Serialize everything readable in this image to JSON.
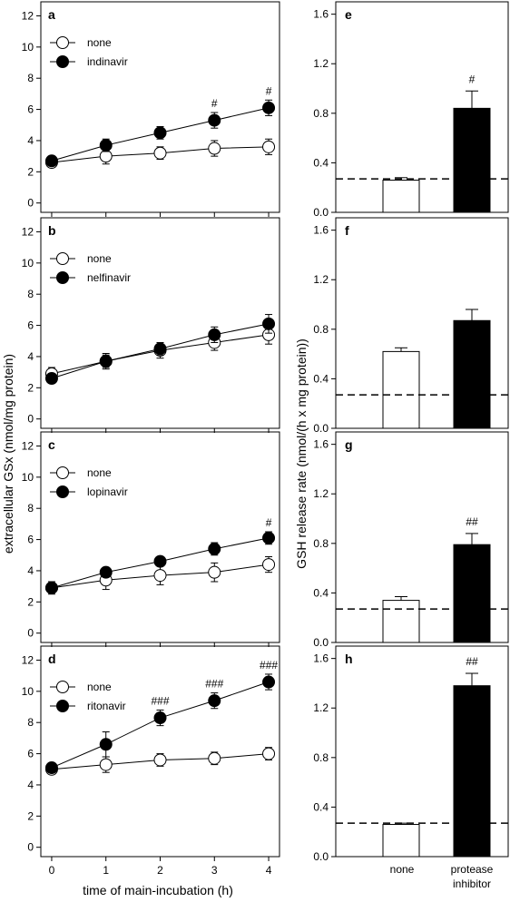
{
  "labels": {
    "left_ylabel": "extracellular GSx (nmol/mg protein)",
    "left_xlabel": "time of main-incubation (h)",
    "right_ylabel": "GSH release rate (nmol/(h x mg protein))",
    "right_cat_none": "none",
    "right_cat_pi_line1": "protease",
    "right_cat_pi_line2": "inhibitor"
  },
  "chart_data": [
    {
      "type": "line",
      "panel": "a",
      "x": [
        0,
        1,
        2,
        3,
        4
      ],
      "xlim": [
        -0.2,
        4.2
      ],
      "ylim": [
        -0.6,
        12.9
      ],
      "xticks": [
        0,
        1,
        2,
        3,
        4
      ],
      "yticks": [
        0,
        2,
        4,
        6,
        8,
        10,
        12
      ],
      "show_xticklabels": false,
      "series": [
        {
          "name": "none",
          "marker": "open",
          "values": [
            2.6,
            3.0,
            3.2,
            3.5,
            3.6
          ],
          "errors": [
            0.3,
            0.5,
            0.4,
            0.5,
            0.5
          ]
        },
        {
          "name": "indinavir",
          "marker": "filled",
          "values": [
            2.7,
            3.7,
            4.5,
            5.3,
            6.1
          ],
          "errors": [
            0.3,
            0.4,
            0.4,
            0.5,
            0.5
          ]
        }
      ],
      "annotations": [
        {
          "x": 3,
          "label": "#"
        },
        {
          "x": 4,
          "label": "#"
        }
      ]
    },
    {
      "type": "line",
      "panel": "b",
      "x": [
        0,
        1,
        2,
        3,
        4
      ],
      "xlim": [
        -0.2,
        4.2
      ],
      "ylim": [
        -0.6,
        12.9
      ],
      "xticks": [
        0,
        1,
        2,
        3,
        4
      ],
      "yticks": [
        0,
        2,
        4,
        6,
        8,
        10,
        12
      ],
      "show_xticklabels": false,
      "series": [
        {
          "name": "none",
          "marker": "open",
          "values": [
            2.9,
            3.7,
            4.4,
            4.9,
            5.4
          ],
          "errors": [
            0.4,
            0.5,
            0.5,
            0.5,
            0.6
          ]
        },
        {
          "name": "nelfinavir",
          "marker": "filled",
          "values": [
            2.6,
            3.7,
            4.5,
            5.4,
            6.1
          ],
          "errors": [
            0.3,
            0.4,
            0.4,
            0.5,
            0.6
          ]
        }
      ],
      "annotations": []
    },
    {
      "type": "line",
      "panel": "c",
      "x": [
        0,
        1,
        2,
        3,
        4
      ],
      "xlim": [
        -0.2,
        4.2
      ],
      "ylim": [
        -0.6,
        12.9
      ],
      "xticks": [
        0,
        1,
        2,
        3,
        4
      ],
      "yticks": [
        0,
        2,
        4,
        6,
        8,
        10,
        12
      ],
      "show_xticklabels": false,
      "series": [
        {
          "name": "none",
          "marker": "open",
          "values": [
            2.9,
            3.4,
            3.7,
            3.9,
            4.4
          ],
          "errors": [
            0.4,
            0.6,
            0.6,
            0.6,
            0.5
          ]
        },
        {
          "name": "lopinavir",
          "marker": "filled",
          "values": [
            2.9,
            3.9,
            4.6,
            5.4,
            6.1
          ],
          "errors": [
            0.3,
            0.3,
            0.3,
            0.4,
            0.4
          ]
        }
      ],
      "annotations": [
        {
          "x": 4,
          "label": "#"
        }
      ]
    },
    {
      "type": "line",
      "panel": "d",
      "x": [
        0,
        1,
        2,
        3,
        4
      ],
      "xlim": [
        -0.2,
        4.2
      ],
      "ylim": [
        -0.6,
        12.9
      ],
      "xticks": [
        0,
        1,
        2,
        3,
        4
      ],
      "yticks": [
        0,
        2,
        4,
        6,
        8,
        10,
        12
      ],
      "show_xticklabels": true,
      "series": [
        {
          "name": "none",
          "marker": "open",
          "values": [
            5.0,
            5.3,
            5.6,
            5.7,
            6.0
          ],
          "errors": [
            0.2,
            0.5,
            0.4,
            0.4,
            0.4
          ]
        },
        {
          "name": "ritonavir",
          "marker": "filled",
          "values": [
            5.1,
            6.6,
            8.3,
            9.4,
            10.6
          ],
          "errors": [
            0.2,
            0.8,
            0.5,
            0.5,
            0.5
          ]
        }
      ],
      "annotations": [
        {
          "x": 2,
          "label": "###"
        },
        {
          "x": 3,
          "label": "###"
        },
        {
          "x": 4,
          "label": "###"
        }
      ]
    },
    {
      "type": "bar",
      "panel": "e",
      "categories": [
        "none",
        "protease inhibitor"
      ],
      "values": [
        0.26,
        0.84
      ],
      "errors": [
        0.02,
        0.14
      ],
      "ylim": [
        0,
        1.7
      ],
      "yticks": [
        "0.0",
        "0.4",
        "0.8",
        "1.2",
        "1.6"
      ],
      "baseline": 0.27,
      "annotations": [
        "",
        "#"
      ]
    },
    {
      "type": "bar",
      "panel": "f",
      "categories": [
        "none",
        "protease inhibitor"
      ],
      "values": [
        0.62,
        0.87
      ],
      "errors": [
        0.03,
        0.09
      ],
      "ylim": [
        0,
        1.7
      ],
      "yticks": [
        "0.0",
        "0.4",
        "0.8",
        "1.2",
        "1.6"
      ],
      "baseline": 0.27,
      "annotations": [
        "",
        ""
      ]
    },
    {
      "type": "bar",
      "panel": "g",
      "categories": [
        "none",
        "protease inhibitor"
      ],
      "values": [
        0.34,
        0.79
      ],
      "errors": [
        0.03,
        0.09
      ],
      "ylim": [
        0,
        1.7
      ],
      "yticks": [
        "0.0",
        "0.4",
        "0.8",
        "1.2",
        "1.6"
      ],
      "baseline": 0.27,
      "annotations": [
        "",
        "##"
      ]
    },
    {
      "type": "bar",
      "panel": "h",
      "categories": [
        "none",
        "protease inhibitor"
      ],
      "values": [
        0.26,
        1.38
      ],
      "errors": [
        0.01,
        0.1
      ],
      "ylim": [
        0,
        1.7
      ],
      "yticks": [
        "0.0",
        "0.4",
        "0.8",
        "1.2",
        "1.6"
      ],
      "baseline": 0.27,
      "annotations": [
        "",
        "##"
      ]
    }
  ]
}
